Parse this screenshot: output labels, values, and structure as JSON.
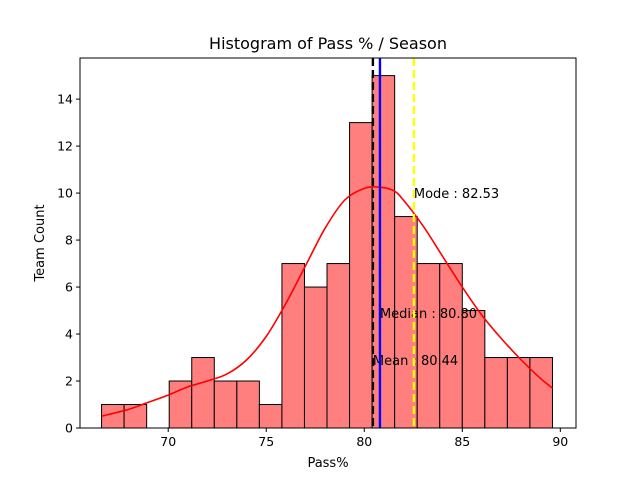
{
  "chart_data": {
    "type": "bar",
    "title": "Histogram of Pass % / Season",
    "xlabel": "Pass%",
    "ylabel": "Team Count",
    "xlim": [
      65.5,
      90.8
    ],
    "ylim": [
      0,
      15.75
    ],
    "x_ticks": [
      70,
      75,
      80,
      85,
      90
    ],
    "y_ticks": [
      0,
      2,
      4,
      6,
      8,
      10,
      12,
      14
    ],
    "bin_start": 66.6,
    "bin_width": 1.15,
    "counts": [
      1,
      1,
      0,
      2,
      3,
      2,
      2,
      1,
      7,
      6,
      7,
      13,
      15,
      9,
      7,
      7,
      5,
      3,
      3,
      3
    ],
    "kde": {
      "x": [
        66.6,
        68,
        69,
        70,
        71,
        72,
        73,
        74,
        75,
        76,
        77,
        78,
        79,
        80,
        80.8,
        81.5,
        82,
        83,
        84,
        85,
        86,
        87,
        88,
        89,
        89.6
      ],
      "y": [
        0.5,
        0.8,
        1.1,
        1.4,
        1.75,
        2.0,
        2.3,
        2.9,
        3.9,
        5.3,
        6.9,
        8.5,
        9.7,
        10.2,
        10.25,
        10.1,
        9.7,
        8.6,
        7.3,
        6.0,
        4.8,
        3.8,
        2.9,
        2.1,
        1.7
      ]
    },
    "lines": [
      {
        "name": "Mean",
        "value": 80.44,
        "color": "#000000",
        "dashed": true,
        "label": "Mean : 80.44",
        "label_y": 2.9
      },
      {
        "name": "Median",
        "value": 80.8,
        "color": "#0000ff",
        "dashed": false,
        "label": "Median : 80.80",
        "label_y": 4.9
      },
      {
        "name": "Mode",
        "value": 82.53,
        "color": "#ffff00",
        "dashed": true,
        "label": "Mode : 82.53",
        "label_y": 10.0
      }
    ],
    "colors": {
      "bar_fill": "#ff7f7f",
      "bar_edge": "#000000",
      "kde": "#ff0000"
    },
    "grid": false
  }
}
